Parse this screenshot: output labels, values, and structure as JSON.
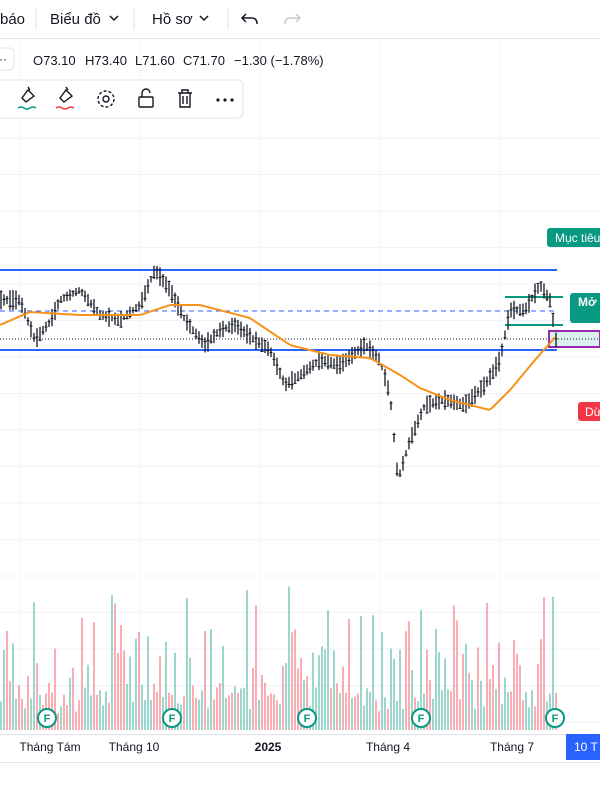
{
  "toolbar": {
    "items": [
      "báo",
      "Biểu đồ",
      "Hồ sơ"
    ]
  },
  "legend": {
    "ohlc": [
      "O73.10",
      "H73.40",
      "L71.60",
      "C71.70",
      "−1.30 (−1.78%)"
    ]
  },
  "labels": {
    "target": "Mục tiêu",
    "open": "Mở",
    "stop": "Dừ"
  },
  "events": [
    "F",
    "F",
    "F",
    "F",
    "F"
  ],
  "x_axis": {
    "labels": [
      "Tháng Tám",
      "Tháng 10",
      "2025",
      "Tháng 4",
      "Tháng 7"
    ],
    "current": "10 T"
  }
}
